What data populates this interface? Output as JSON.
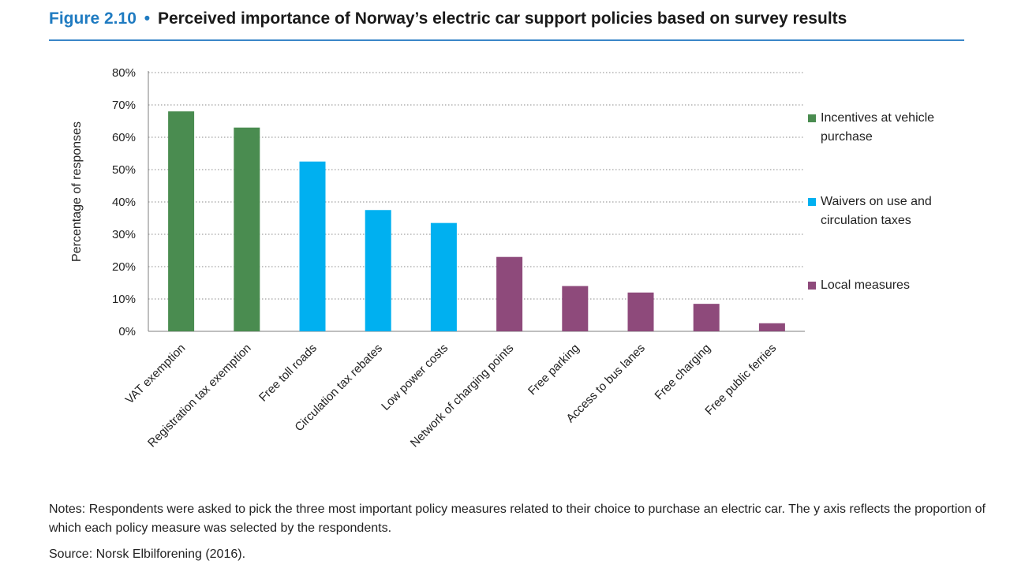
{
  "figure": {
    "number": "Figure 2.10",
    "separator": "•",
    "title": "Perceived importance of Norway’s electric car support policies based on survey results"
  },
  "chart_data": {
    "type": "bar",
    "title": "",
    "xlabel": "",
    "ylabel": "Percentage of responses",
    "ylim": [
      0,
      80
    ],
    "yticks": [
      "0%",
      "10%",
      "20%",
      "30%",
      "40%",
      "50%",
      "60%",
      "70%",
      "80%"
    ],
    "grid": "horizontal dotted",
    "legend_position": "right",
    "categories": [
      "VAT exemption",
      "Registration tax exemption",
      "Free toll roads",
      "Circulation tax rebates",
      "Low power costs",
      "Network of charging points",
      "Free parking",
      "Access to bus lanes",
      "Free charging",
      "Free public ferries"
    ],
    "values": [
      68,
      63,
      52.5,
      37.5,
      33.5,
      23,
      14,
      12,
      8.5,
      2.5
    ],
    "group": [
      0,
      0,
      1,
      1,
      1,
      2,
      2,
      2,
      2,
      2
    ],
    "groups": [
      {
        "name": "Incentives at vehicle purchase",
        "color": "#4a8c50"
      },
      {
        "name": "Waivers on use and circulation taxes",
        "color": "#00b0f0"
      },
      {
        "name": "Local measures",
        "color": "#8e4a7b"
      }
    ]
  },
  "legend": {
    "line1": [
      "Incentives at vehicle",
      "purchase"
    ],
    "line2": [
      "Waivers on use and",
      "circulation taxes"
    ],
    "line3": [
      "Local measures"
    ]
  },
  "notes": {
    "text": "Notes: Respondents were asked to pick the three most important policy measures related to their choice to purchase an electric car. The y axis reflects the proportion of which each policy measure was selected by the respondents.",
    "source": "Source: Norsk Elbilforening (2016)."
  }
}
